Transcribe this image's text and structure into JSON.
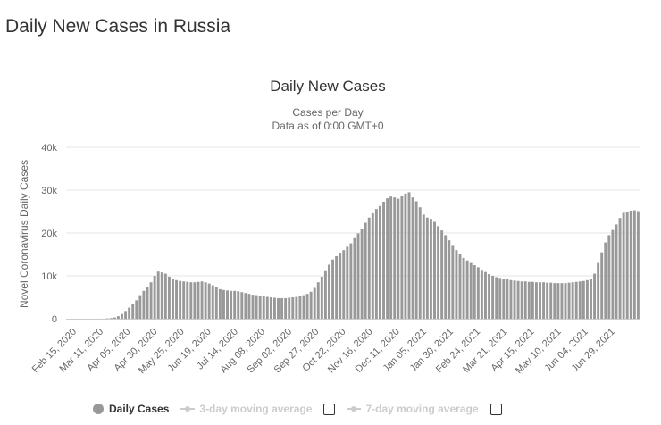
{
  "page": {
    "title": "Daily New Cases in Russia"
  },
  "colors": {
    "bar": "#999999",
    "grid": "#e6e6e6",
    "text": "#333333",
    "muted": "#666666",
    "inactive": "#cccccc"
  },
  "legend": {
    "items": [
      {
        "label": "Daily Cases",
        "active": true,
        "icon": "circle-marker-icon"
      },
      {
        "label": "3-day moving average",
        "active": false,
        "icon": "line-marker-icon"
      },
      {
        "label": "7-day moving average",
        "active": false,
        "icon": "line-marker-icon"
      }
    ]
  },
  "chart_data": {
    "type": "bar",
    "title": "Daily New Cases",
    "subtitle_lines": [
      "Cases per Day",
      "Data as of 0:00 GMT+0"
    ],
    "ylabel": "Novel Coronavirus Daily Cases",
    "xlabel": "",
    "ylim": [
      0,
      40000
    ],
    "yticks": [
      {
        "value": 0,
        "label": "0"
      },
      {
        "value": 10000,
        "label": "10k"
      },
      {
        "value": 20000,
        "label": "20k"
      },
      {
        "value": 30000,
        "label": "30k"
      },
      {
        "value": 40000,
        "label": "40k"
      }
    ],
    "grid": true,
    "x_tick_labels": [
      "Feb 15, 2020",
      "Mar 11, 2020",
      "Apr 05, 2020",
      "Apr 30, 2020",
      "May 25, 2020",
      "Jun 19, 2020",
      "Jul 14, 2020",
      "Aug 08, 2020",
      "Sep 02, 2020",
      "Sep 27, 2020",
      "Oct 22, 2020",
      "Nov 16, 2020",
      "Dec 11, 2020",
      "Jan 05, 2021",
      "Jan 30, 2021",
      "Feb 24, 2021",
      "Mar 21, 2021",
      "Apr 15, 2021",
      "May 10, 2021",
      "Jun 04, 2021",
      "Jun 29, 2021"
    ],
    "series": [
      {
        "name": "Daily Cases",
        "start": "Feb 15, 2020",
        "interval_days": 3,
        "values": [
          0,
          0,
          0,
          0,
          0,
          0,
          0,
          0,
          0,
          0,
          20,
          80,
          150,
          300,
          600,
          1100,
          1800,
          2600,
          3400,
          4300,
          5500,
          6500,
          7400,
          8500,
          10000,
          11000,
          10800,
          10500,
          9800,
          9300,
          9000,
          8800,
          8700,
          8600,
          8500,
          8500,
          8600,
          8700,
          8500,
          8200,
          7800,
          7300,
          6900,
          6700,
          6600,
          6500,
          6500,
          6400,
          6200,
          6000,
          5800,
          5600,
          5500,
          5300,
          5200,
          5100,
          5000,
          4900,
          4800,
          4800,
          4800,
          4900,
          5000,
          5100,
          5300,
          5500,
          5800,
          6300,
          7200,
          8500,
          9800,
          11300,
          12600,
          13800,
          14600,
          15400,
          16000,
          16800,
          17600,
          18800,
          19900,
          21000,
          22400,
          23600,
          24600,
          25600,
          26300,
          27300,
          28100,
          28500,
          28300,
          28000,
          28600,
          29200,
          29500,
          28300,
          27400,
          26000,
          24300,
          23600,
          23300,
          22600,
          21600,
          20600,
          19500,
          18300,
          17200,
          16000,
          15000,
          14200,
          13600,
          13000,
          12500,
          12000,
          11400,
          10900,
          10400,
          10000,
          9700,
          9500,
          9300,
          9200,
          9000,
          8900,
          8800,
          8700,
          8700,
          8600,
          8600,
          8500,
          8500,
          8500,
          8400,
          8400,
          8300,
          8300,
          8300,
          8300,
          8400,
          8500,
          8600,
          8700,
          8800,
          9000,
          9300,
          10500,
          13000,
          15500,
          17800,
          19500,
          20700,
          22000,
          23500,
          24700,
          24900,
          25200,
          25300,
          25100
        ]
      }
    ]
  }
}
